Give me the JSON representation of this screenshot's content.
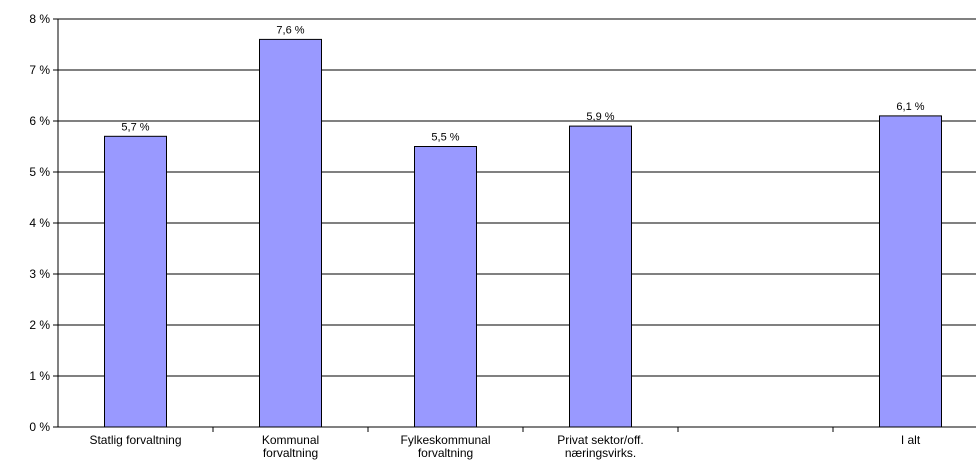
{
  "chart_data": {
    "type": "bar",
    "categories": [
      "Statlig forvaltning",
      "Kommunal\nforvaltning",
      "Fylkeskommunal\nforvaltning",
      "Privat sektor/off.\nnæringsvirks.",
      null,
      "I alt"
    ],
    "values": [
      5.7,
      7.6,
      5.5,
      5.9,
      null,
      6.1
    ],
    "value_labels": [
      "5,7 %",
      "7,6 %",
      "5,5 %",
      "5,9 %",
      null,
      "6,1 %"
    ],
    "color": "#9999ff",
    "ylim": [
      0,
      8
    ],
    "yticks": [
      {
        "value": 0,
        "label": "0 %"
      },
      {
        "value": 1,
        "label": "1 %"
      },
      {
        "value": 2,
        "label": "2 %"
      },
      {
        "value": 3,
        "label": "3 %"
      },
      {
        "value": 4,
        "label": "4 %"
      },
      {
        "value": 5,
        "label": "5 %"
      },
      {
        "value": 6,
        "label": "6 %"
      },
      {
        "value": 7,
        "label": "7 %"
      },
      {
        "value": 8,
        "label": "8 %"
      }
    ],
    "grid": true
  }
}
